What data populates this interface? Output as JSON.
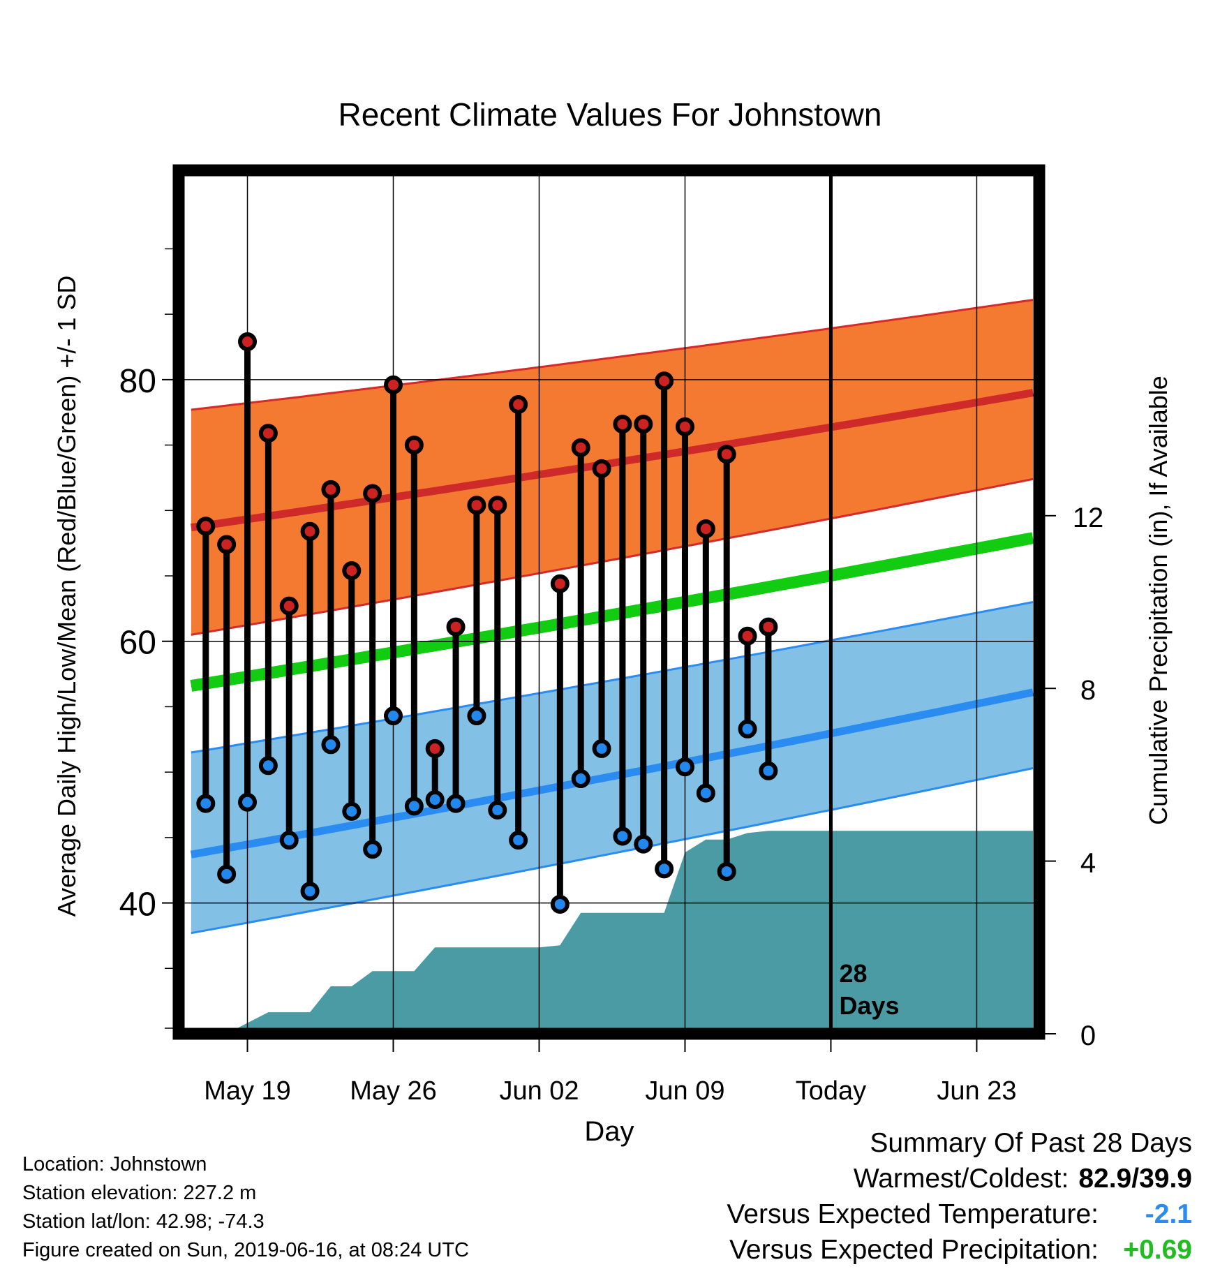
{
  "chart_data": {
    "type": "line",
    "title": "Recent Climate Values For Johnstown",
    "xlabel": "Day",
    "ylabel": "Average Daily High/Low/Mean (Red/Blue/Green) +/- 1 SD",
    "y2label": "Cumulative Precipitation (in), If Available",
    "xlim": [
      -3.3,
      38
    ],
    "ylim": [
      30,
      96
    ],
    "y2lim": [
      0,
      20.0
    ],
    "x_ticks": [
      {
        "x": 0,
        "label": "May 19"
      },
      {
        "x": 7,
        "label": "May 26"
      },
      {
        "x": 14,
        "label": "Jun 02"
      },
      {
        "x": 21,
        "label": "Jun 09"
      },
      {
        "x": 28,
        "label": "Today"
      },
      {
        "x": 35,
        "label": "Jun 23"
      }
    ],
    "y_ticks": [
      40,
      60,
      80
    ],
    "y2_ticks": [
      0,
      4,
      8,
      12
    ],
    "today_x": 28,
    "today_label_line1": "28",
    "today_label_line2": "Days",
    "normals": {
      "x": [
        -2.7,
        37.7
      ],
      "high_mean": [
        68.7,
        79.0
      ],
      "high_upper": [
        77.7,
        86.1
      ],
      "high_lower": [
        60.5,
        72.4
      ],
      "avg_mean": [
        56.6,
        67.9
      ],
      "low_mean": [
        43.7,
        56.1
      ],
      "low_upper": [
        51.5,
        63.0
      ],
      "low_lower": [
        37.7,
        50.3
      ]
    },
    "series": [
      {
        "name": "High",
        "color": "#cc2222",
        "x": [
          -2,
          -1,
          0,
          1,
          2,
          3,
          4,
          5,
          6,
          7,
          8,
          9,
          10,
          11,
          12,
          13,
          15,
          16,
          17,
          18,
          19,
          20,
          21,
          22,
          23,
          24,
          25
        ],
        "values": [
          68.8,
          67.4,
          82.9,
          75.9,
          62.7,
          68.4,
          71.6,
          65.4,
          71.3,
          79.6,
          75.0,
          51.8,
          61.1,
          70.4,
          70.4,
          78.1,
          64.4,
          74.8,
          73.2,
          76.6,
          76.6,
          79.9,
          76.4,
          68.6,
          74.3,
          60.4,
          61.1
        ]
      },
      {
        "name": "Low",
        "color": "#2288ee",
        "x": [
          -2,
          -1,
          0,
          1,
          2,
          3,
          4,
          5,
          6,
          7,
          8,
          9,
          10,
          11,
          12,
          13,
          15,
          16,
          17,
          18,
          19,
          20,
          21,
          22,
          23,
          24,
          25
        ],
        "values": [
          47.6,
          42.2,
          47.7,
          50.5,
          44.8,
          40.9,
          52.1,
          47.0,
          44.1,
          54.3,
          47.4,
          47.9,
          47.6,
          54.3,
          47.1,
          44.8,
          39.9,
          49.5,
          51.8,
          45.1,
          44.5,
          42.6,
          50.4,
          48.4,
          42.4,
          53.3,
          50.1
        ]
      },
      {
        "name": "Precipitation",
        "color": "#4a9ba3",
        "x": [
          -1,
          0,
          1,
          2,
          3,
          4,
          5,
          6,
          7,
          8,
          9,
          10,
          11,
          12,
          13,
          14,
          15,
          16,
          17,
          18,
          19,
          20,
          21,
          22,
          23,
          24,
          25,
          26,
          27,
          28,
          37.7
        ],
        "values": [
          0,
          0.25,
          0.5,
          0.5,
          0.5,
          1.1,
          1.1,
          1.45,
          1.45,
          1.45,
          2.0,
          2.0,
          2.0,
          2.0,
          2.0,
          2.0,
          2.05,
          2.8,
          2.8,
          2.8,
          2.8,
          2.8,
          4.2,
          4.5,
          4.5,
          4.65,
          4.7,
          4.7,
          4.7,
          4.7,
          4.7
        ]
      }
    ]
  },
  "info": {
    "location": "Location: Johnstown",
    "elevation": "Station elevation: 227.2 m",
    "latlon": "Station lat/lon: 42.98; -74.3",
    "created": "Figure created on Sun, 2019-06-16, at 08:24 UTC"
  },
  "summary": {
    "title": "Summary Of Past 28 Days",
    "warm_cold_label": "Warmest/Coldest:",
    "warm_cold_value": "82.9/39.9",
    "temp_label": "Versus Expected Temperature:",
    "temp_value": "-2.1",
    "temp_color": "#2a8cf0",
    "precip_label": "Versus Expected Precipitation:",
    "precip_value": "+0.69",
    "precip_color": "#22bb22"
  }
}
